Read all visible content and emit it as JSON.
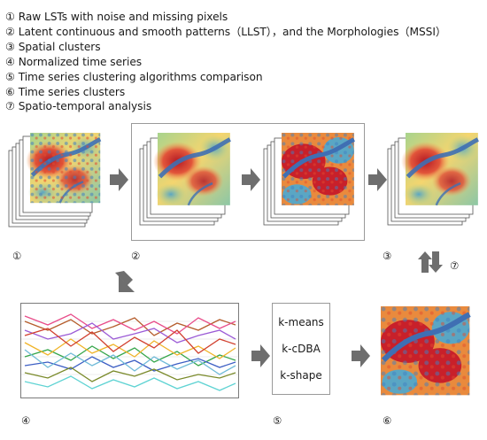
{
  "legend": [
    "① Raw LSTs with noise and missing pixels",
    "② Latent continuous and smooth patterns（LLST），and the Morphologies（MSSI）",
    "③ Spatial clusters",
    "④ Normalized time series",
    "⑤ Time series clustering algorithms comparison",
    "⑥ Time series clusters",
    "⑦ Spatio-temporal analysis"
  ],
  "step_numbers": {
    "n1": "①",
    "n2": "②",
    "n3": "③",
    "n4": "④",
    "n5": "⑤",
    "n6": "⑥",
    "n7": "⑦"
  },
  "algorithms": [
    "k-means",
    "k-cDBA",
    "k-shape"
  ],
  "colors": {
    "hot": "#c8202a",
    "warm": "#f07a3c",
    "mild": "#f6d36a",
    "cool": "#a9d38b",
    "cold": "#5aa6c4",
    "river": "#3f6fb3",
    "arrow": "#6e6e6e"
  }
}
